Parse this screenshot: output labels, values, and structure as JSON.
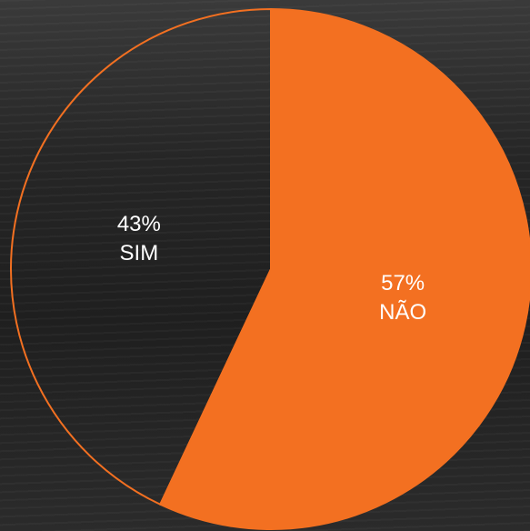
{
  "chart_data": {
    "type": "pie",
    "categories": [
      "NÃO",
      "SIM"
    ],
    "values": [
      57,
      43
    ],
    "value_labels": [
      "57%",
      "43%"
    ],
    "colors": [
      "#f37021",
      "none"
    ],
    "outline_color": "#f37021"
  }
}
